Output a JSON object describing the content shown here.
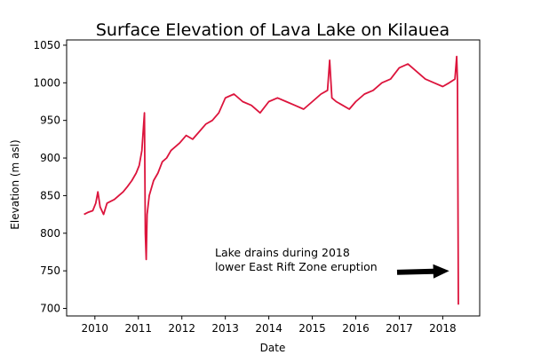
{
  "chart_data": {
    "type": "line",
    "title": "Surface Elevation of Lava Lake on Kilauea",
    "xlabel": "Date",
    "ylabel": "Elevation (m asl)",
    "xlim": [
      2009.35,
      2018.85
    ],
    "ylim": [
      690,
      1057
    ],
    "xticks": [
      2010,
      2011,
      2012,
      2013,
      2014,
      2015,
      2016,
      2017,
      2018
    ],
    "xtick_labels": [
      "2010",
      "2011",
      "2012",
      "2013",
      "2014",
      "2015",
      "2016",
      "2017",
      "2018"
    ],
    "yticks": [
      700,
      750,
      800,
      850,
      900,
      950,
      1000,
      1050
    ],
    "ytick_labels": [
      "700",
      "750",
      "800",
      "850",
      "900",
      "950",
      "1000",
      "1050"
    ],
    "grid": false,
    "colors": {
      "line": "#DC143C",
      "arrow": "#000000"
    },
    "series": [
      {
        "name": "",
        "x": [
          2009.75,
          2009.85,
          2009.95,
          2010.02,
          2010.07,
          2010.12,
          2010.2,
          2010.28,
          2010.35,
          2010.45,
          2010.55,
          2010.65,
          2010.75,
          2010.85,
          2010.95,
          2011.02,
          2011.08,
          2011.14,
          2011.16,
          2011.18,
          2011.2,
          2011.25,
          2011.35,
          2011.45,
          2011.55,
          2011.65,
          2011.75,
          2011.85,
          2011.95,
          2012.1,
          2012.25,
          2012.4,
          2012.55,
          2012.7,
          2012.85,
          2013.0,
          2013.2,
          2013.4,
          2013.6,
          2013.8,
          2014.0,
          2014.2,
          2014.4,
          2014.6,
          2014.8,
          2015.0,
          2015.2,
          2015.35,
          2015.4,
          2015.45,
          2015.55,
          2015.7,
          2015.85,
          2016.0,
          2016.2,
          2016.4,
          2016.6,
          2016.8,
          2017.0,
          2017.2,
          2017.4,
          2017.6,
          2017.8,
          2018.0,
          2018.15,
          2018.28,
          2018.32,
          2018.34,
          2018.36
        ],
        "y": [
          825,
          828,
          830,
          840,
          855,
          835,
          825,
          840,
          842,
          845,
          850,
          855,
          862,
          870,
          880,
          890,
          910,
          960,
          800,
          765,
          825,
          850,
          870,
          880,
          895,
          900,
          910,
          915,
          920,
          930,
          925,
          935,
          945,
          950,
          960,
          980,
          985,
          975,
          970,
          960,
          975,
          980,
          975,
          970,
          965,
          975,
          985,
          990,
          1030,
          980,
          975,
          970,
          965,
          975,
          985,
          990,
          1000,
          1005,
          1020,
          1025,
          1015,
          1005,
          1000,
          995,
          1000,
          1005,
          1035,
          1000,
          705
        ]
      }
    ],
    "annotation": {
      "text_lines": [
        "Lake drains during 2018",
        "lower East Rift Zone eruption"
      ],
      "arrow_from": [
        2016.95,
        748
      ],
      "arrow_to": [
        2018.15,
        750
      ]
    }
  }
}
